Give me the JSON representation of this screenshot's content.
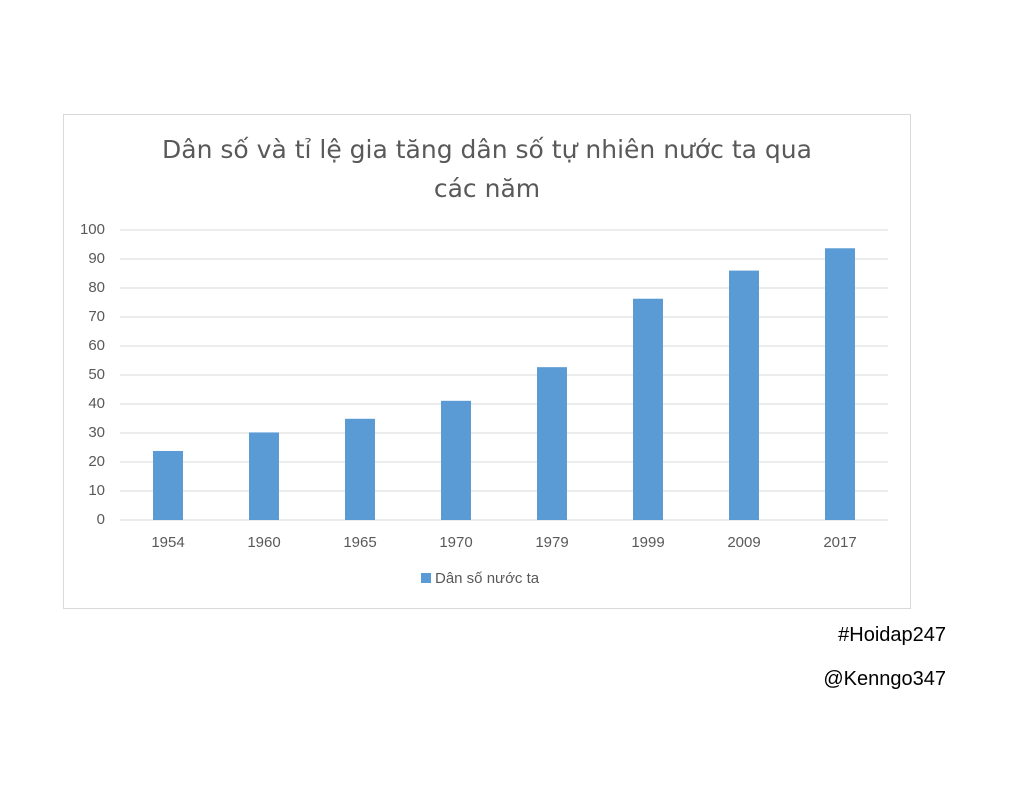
{
  "chart_data": {
    "type": "bar",
    "title": "Dân số và tỉ lệ gia tăng dân số tự nhiên nước ta qua các năm",
    "categories": [
      "1954",
      "1960",
      "1965",
      "1970",
      "1979",
      "1999",
      "2009",
      "2017"
    ],
    "series": [
      {
        "name": "Dân số nước ta",
        "color": "#5b9bd5",
        "values": [
          23.8,
          30.2,
          34.9,
          41.1,
          52.7,
          76.3,
          86.0,
          93.7
        ]
      }
    ],
    "ylim": [
      0,
      100
    ],
    "yticks": [
      0,
      10,
      20,
      30,
      40,
      50,
      60,
      70,
      80,
      90,
      100
    ],
    "grid": true,
    "legend": "bottom",
    "annotations": [
      "#Hoidap247",
      "@Kenngo347"
    ]
  }
}
